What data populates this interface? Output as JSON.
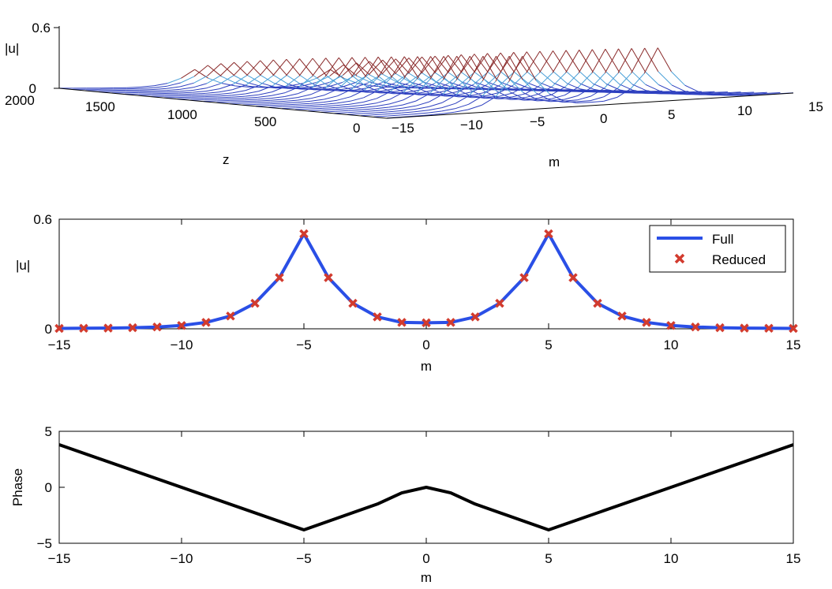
{
  "chart_data": [
    {
      "type": "surface-waterfall",
      "panel": "top",
      "xlabel": "m",
      "ylabel": "z",
      "zlabel": "|u|",
      "xlim": [
        -15,
        15
      ],
      "ylim": [
        0,
        2000
      ],
      "zlim": [
        0,
        0.6
      ],
      "x_ticks": [
        "−15",
        "−10",
        "−5",
        "0",
        "5",
        "10",
        "15"
      ],
      "y_ticks": [
        "0",
        "500",
        "1000",
        "1500",
        "2000"
      ],
      "z_ticks": [
        "0",
        "0.6"
      ],
      "description_values": "waterfall of |u|(m) at successive z; peaks near m=±5 reaching ~0.55"
    },
    {
      "type": "line",
      "panel": "middle",
      "xlabel": "m",
      "ylabel": "|u|",
      "xlim": [
        -15,
        15
      ],
      "ylim": [
        0,
        0.6
      ],
      "x_ticks": [
        "−15",
        "−10",
        "−5",
        "0",
        "5",
        "10",
        "15"
      ],
      "y_ticks": [
        "0",
        "0.6"
      ],
      "legend": {
        "position": "top-right",
        "full_label": "Full",
        "reduced_label": "Reduced"
      },
      "x": [
        -15,
        -14,
        -13,
        -12,
        -11,
        -10,
        -9,
        -8,
        -7,
        -6,
        -5,
        -4,
        -3,
        -2,
        -1,
        0,
        1,
        2,
        3,
        4,
        5,
        6,
        7,
        8,
        9,
        10,
        11,
        12,
        13,
        14,
        15
      ],
      "series": [
        {
          "name": "Full",
          "color": "#2a4fe6",
          "values": [
            0.002,
            0.003,
            0.004,
            0.006,
            0.01,
            0.018,
            0.035,
            0.07,
            0.14,
            0.28,
            0.52,
            0.28,
            0.14,
            0.065,
            0.035,
            0.033,
            0.035,
            0.065,
            0.14,
            0.28,
            0.52,
            0.28,
            0.14,
            0.07,
            0.035,
            0.018,
            0.01,
            0.006,
            0.004,
            0.003,
            0.002
          ]
        },
        {
          "name": "Reduced",
          "color": "#d23b2e",
          "values": [
            0.002,
            0.003,
            0.004,
            0.006,
            0.01,
            0.018,
            0.035,
            0.07,
            0.14,
            0.28,
            0.52,
            0.28,
            0.14,
            0.065,
            0.035,
            0.033,
            0.035,
            0.065,
            0.14,
            0.28,
            0.52,
            0.28,
            0.14,
            0.07,
            0.035,
            0.018,
            0.01,
            0.006,
            0.004,
            0.003,
            0.002
          ]
        }
      ]
    },
    {
      "type": "line",
      "panel": "bottom",
      "xlabel": "m",
      "ylabel": "Phase",
      "xlim": [
        -15,
        15
      ],
      "ylim": [
        -5,
        5
      ],
      "x_ticks": [
        "−15",
        "−10",
        "−5",
        "0",
        "5",
        "10",
        "15"
      ],
      "y_ticks": [
        "5",
        "0",
        "−5"
      ],
      "series": [
        {
          "name": "Phase",
          "color": "#000000",
          "x": [
            -15,
            -5,
            -2,
            -1,
            0,
            1,
            2,
            5,
            15
          ],
          "values": [
            3.8,
            -3.8,
            -1.5,
            -0.5,
            0,
            -0.5,
            -1.5,
            -3.8,
            3.8
          ]
        }
      ]
    }
  ]
}
